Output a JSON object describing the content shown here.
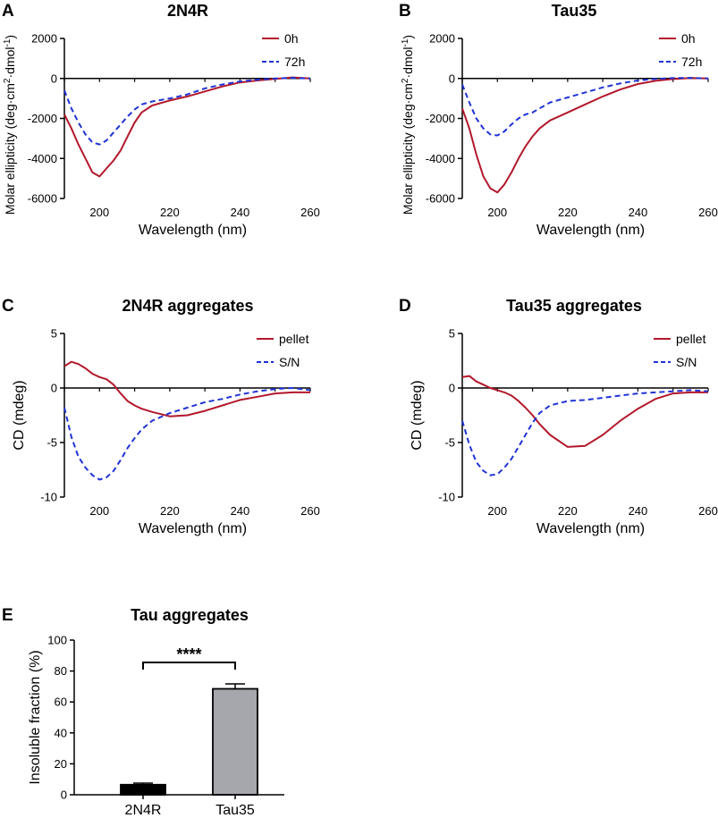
{
  "colors": {
    "red": "#b2182b",
    "blue": "#1f33d6",
    "bar_2N4R": "#000000",
    "bar_Tau35": "#a6a6ad"
  },
  "chart_data": [
    {
      "type": "line",
      "panel": "A",
      "title": "2N4R",
      "xlabel": "Wavelength (nm)",
      "ylabel": {
        "pre": "Molar ellipticity (deg·cm",
        "sup1": "2",
        "mid": "·dmol",
        "sup2": "-1",
        "post": ")"
      },
      "xlim": [
        190,
        260
      ],
      "ylim": [
        -6000,
        2000
      ],
      "xticks": [
        200,
        220,
        240,
        260
      ],
      "yticks": [
        -6000,
        -4000,
        -2000,
        0,
        2000
      ],
      "series": [
        {
          "name": "0h",
          "style": "solid",
          "x": [
            190,
            192,
            194,
            196,
            198,
            200,
            202,
            204,
            206,
            208,
            210,
            212,
            215,
            220,
            225,
            230,
            235,
            240,
            245,
            250,
            255,
            260
          ],
          "y": [
            -1800,
            -2500,
            -3300,
            -4000,
            -4700,
            -4900,
            -4500,
            -4100,
            -3600,
            -2900,
            -2200,
            -1700,
            -1350,
            -1100,
            -900,
            -650,
            -400,
            -200,
            -100,
            -20,
            50,
            0
          ]
        },
        {
          "name": "72h",
          "style": "dashed",
          "x": [
            190,
            192,
            194,
            196,
            198,
            200,
            202,
            204,
            206,
            208,
            210,
            212,
            215,
            220,
            225,
            230,
            235,
            240,
            245,
            250,
            255,
            260
          ],
          "y": [
            -600,
            -1500,
            -2200,
            -2800,
            -3200,
            -3300,
            -3100,
            -2700,
            -2300,
            -1900,
            -1550,
            -1300,
            -1150,
            -1000,
            -800,
            -500,
            -300,
            -150,
            -60,
            0,
            30,
            0
          ]
        }
      ]
    },
    {
      "type": "line",
      "panel": "B",
      "title": "Tau35",
      "xlabel": "Wavelength (nm)",
      "ylabel": {
        "pre": "Molar ellipticity (deg·cm",
        "sup1": "2",
        "mid": "·dmol",
        "sup2": "-1",
        "post": ")"
      },
      "xlim": [
        190,
        260
      ],
      "ylim": [
        -6000,
        2000
      ],
      "xticks": [
        200,
        220,
        240,
        260
      ],
      "yticks": [
        -6000,
        -4000,
        -2000,
        0,
        2000
      ],
      "series": [
        {
          "name": "0h",
          "style": "solid",
          "x": [
            190,
            192,
            194,
            196,
            198,
            200,
            202,
            204,
            206,
            208,
            210,
            212,
            215,
            220,
            225,
            230,
            235,
            240,
            245,
            250,
            255,
            260
          ],
          "y": [
            -1500,
            -2500,
            -3800,
            -4900,
            -5500,
            -5700,
            -5300,
            -4700,
            -4000,
            -3400,
            -2900,
            -2500,
            -2100,
            -1700,
            -1300,
            -900,
            -550,
            -280,
            -120,
            -30,
            20,
            0
          ]
        },
        {
          "name": "72h",
          "style": "dashed",
          "x": [
            190,
            192,
            194,
            196,
            198,
            200,
            202,
            204,
            206,
            208,
            210,
            212,
            215,
            220,
            225,
            230,
            235,
            240,
            245,
            250,
            255,
            260
          ],
          "y": [
            -300,
            -1200,
            -2000,
            -2500,
            -2800,
            -2850,
            -2650,
            -2300,
            -2000,
            -1800,
            -1700,
            -1500,
            -1200,
            -950,
            -700,
            -450,
            -250,
            -100,
            -20,
            20,
            30,
            0
          ]
        }
      ]
    },
    {
      "type": "line",
      "panel": "C",
      "title": "2N4R aggregates",
      "xlabel": "Wavelength (nm)",
      "ylabel": "CD (mdeg)",
      "xlim": [
        190,
        260
      ],
      "ylim": [
        -10,
        5
      ],
      "xticks": [
        200,
        220,
        240,
        260
      ],
      "yticks": [
        -10,
        -5,
        0,
        5
      ],
      "series": [
        {
          "name": "pellet",
          "style": "solid",
          "x": [
            190,
            192,
            194,
            196,
            198,
            200,
            202,
            204,
            206,
            208,
            210,
            212,
            215,
            220,
            225,
            230,
            235,
            240,
            245,
            250,
            255,
            260
          ],
          "y": [
            2.0,
            2.4,
            2.2,
            1.8,
            1.3,
            1.0,
            0.8,
            0.3,
            -0.5,
            -1.2,
            -1.6,
            -1.9,
            -2.2,
            -2.6,
            -2.5,
            -2.1,
            -1.6,
            -1.1,
            -0.8,
            -0.5,
            -0.4,
            -0.4
          ]
        },
        {
          "name": "S/N",
          "style": "dashed",
          "x": [
            190,
            192,
            194,
            196,
            198,
            200,
            202,
            204,
            206,
            208,
            210,
            212,
            215,
            220,
            225,
            230,
            235,
            240,
            245,
            250,
            255,
            260
          ],
          "y": [
            -1.8,
            -4.5,
            -6.3,
            -7.3,
            -8.0,
            -8.4,
            -8.2,
            -7.6,
            -6.6,
            -5.5,
            -4.6,
            -3.8,
            -3.0,
            -2.3,
            -1.8,
            -1.3,
            -1.0,
            -0.6,
            -0.3,
            -0.1,
            0.0,
            -0.2
          ]
        }
      ]
    },
    {
      "type": "line",
      "panel": "D",
      "title": "Tau35 aggregates",
      "xlabel": "Wavelength (nm)",
      "ylabel": "CD (mdeg)",
      "xlim": [
        190,
        260
      ],
      "ylim": [
        -10,
        5
      ],
      "xticks": [
        200,
        220,
        240,
        260
      ],
      "yticks": [
        -10,
        -5,
        0,
        5
      ],
      "series": [
        {
          "name": "pellet",
          "style": "solid",
          "x": [
            190,
            192,
            194,
            196,
            198,
            200,
            202,
            204,
            206,
            208,
            210,
            212,
            215,
            220,
            225,
            230,
            235,
            240,
            245,
            250,
            255,
            260
          ],
          "y": [
            1.0,
            1.1,
            0.6,
            0.3,
            0.0,
            -0.2,
            -0.4,
            -0.7,
            -1.2,
            -1.8,
            -2.5,
            -3.3,
            -4.3,
            -5.4,
            -5.3,
            -4.3,
            -3.0,
            -1.9,
            -1.0,
            -0.5,
            -0.4,
            -0.4
          ]
        },
        {
          "name": "S/N",
          "style": "dashed",
          "x": [
            190,
            192,
            194,
            196,
            198,
            200,
            202,
            204,
            206,
            208,
            210,
            212,
            215,
            220,
            225,
            230,
            235,
            240,
            245,
            250,
            255,
            260
          ],
          "y": [
            -3.0,
            -5.2,
            -6.8,
            -7.6,
            -8.0,
            -7.9,
            -7.3,
            -6.5,
            -5.4,
            -4.3,
            -3.2,
            -2.3,
            -1.6,
            -1.2,
            -1.1,
            -0.9,
            -0.7,
            -0.5,
            -0.4,
            -0.3,
            -0.2,
            -0.3
          ]
        }
      ]
    },
    {
      "type": "bar",
      "panel": "E",
      "title": "Tau aggregates",
      "ylabel": "Insoluble fraction (%)",
      "categories": [
        "2N4R",
        "Tau35"
      ],
      "values": [
        6.5,
        68.5
      ],
      "errors": [
        1.0,
        3.2
      ],
      "ylim": [
        0,
        100
      ],
      "yticks": [
        0,
        20,
        40,
        60,
        80,
        100
      ],
      "significance": "****"
    }
  ]
}
